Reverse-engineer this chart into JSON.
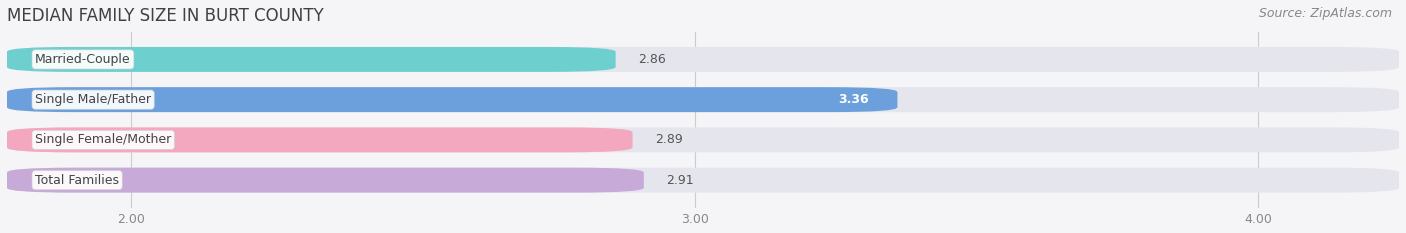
{
  "title": "MEDIAN FAMILY SIZE IN BURT COUNTY",
  "source": "Source: ZipAtlas.com",
  "categories": [
    "Married-Couple",
    "Single Male/Father",
    "Single Female/Mother",
    "Total Families"
  ],
  "values": [
    2.86,
    3.36,
    2.89,
    2.91
  ],
  "bar_colors": [
    "#6ecfcf",
    "#6ca0dc",
    "#f4a8c0",
    "#c8aad8"
  ],
  "label_colors": [
    "#333333",
    "#ffffff",
    "#333333",
    "#333333"
  ],
  "value_in_bar": [
    false,
    true,
    false,
    false
  ],
  "xlim_left": 1.78,
  "xlim_right": 4.25,
  "xticks": [
    2.0,
    3.0,
    4.0
  ],
  "xtick_labels": [
    "2.00",
    "3.00",
    "4.00"
  ],
  "background_color": "#f5f5f8",
  "bar_bg_color": "#e5e5ed",
  "title_fontsize": 12,
  "source_fontsize": 9,
  "label_fontsize": 9,
  "value_fontsize": 9,
  "tick_fontsize": 9,
  "bar_height": 0.62,
  "bar_gap": 0.18
}
